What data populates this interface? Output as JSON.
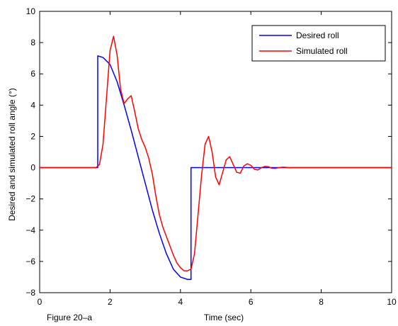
{
  "chart_data": {
    "type": "line",
    "title": "",
    "xlabel": "Time (sec)",
    "ylabel": "Desired and simulated roll angle (°)",
    "caption": "Figure 20–a",
    "xlim": [
      0,
      10
    ],
    "ylim": [
      -8,
      10
    ],
    "x_ticks": [
      "0",
      "2",
      "4",
      "6",
      "8",
      "10"
    ],
    "y_ticks": [
      "−8",
      "−6",
      "−4",
      "−2",
      "0",
      "2",
      "4",
      "6",
      "8",
      "10"
    ],
    "grid": false,
    "legend_position": "top-right",
    "series": [
      {
        "name": "Desired roll",
        "color": "#0000ff",
        "x": [
          0,
          1.65,
          1.65,
          1.8,
          2.0,
          2.2,
          2.4,
          2.6,
          2.8,
          3.0,
          3.2,
          3.4,
          3.6,
          3.8,
          4.0,
          4.2,
          4.3,
          4.3,
          10
        ],
        "y": [
          0,
          0,
          7.15,
          7.05,
          6.6,
          5.5,
          4.0,
          2.4,
          0.7,
          -1.0,
          -2.7,
          -4.2,
          -5.5,
          -6.5,
          -7.0,
          -7.15,
          -7.15,
          0,
          0
        ]
      },
      {
        "name": "Simulated roll",
        "color": "#ff0000",
        "x": [
          0,
          1.6,
          1.7,
          1.8,
          1.9,
          2.0,
          2.1,
          2.2,
          2.3,
          2.4,
          2.5,
          2.6,
          2.7,
          2.8,
          2.9,
          3.0,
          3.1,
          3.2,
          3.3,
          3.4,
          3.5,
          3.6,
          3.7,
          3.8,
          3.9,
          4.0,
          4.1,
          4.2,
          4.3,
          4.4,
          4.5,
          4.6,
          4.7,
          4.8,
          4.9,
          5.0,
          5.1,
          5.2,
          5.3,
          5.4,
          5.5,
          5.6,
          5.7,
          5.8,
          5.9,
          6.0,
          6.1,
          6.2,
          6.3,
          6.4,
          6.5,
          6.6,
          6.7,
          6.8,
          6.9,
          7.0,
          7.1,
          7.2,
          7.5,
          10
        ],
        "y": [
          0,
          0,
          0.2,
          1.5,
          4.5,
          7.5,
          8.4,
          7.2,
          5.0,
          4.1,
          4.4,
          4.6,
          3.6,
          2.5,
          1.8,
          1.3,
          0.6,
          -0.4,
          -1.8,
          -3.0,
          -3.8,
          -4.4,
          -5.0,
          -5.6,
          -6.1,
          -6.4,
          -6.6,
          -6.6,
          -6.5,
          -5.5,
          -3.0,
          -0.5,
          1.5,
          2.0,
          1.0,
          -0.6,
          -1.1,
          -0.3,
          0.5,
          0.7,
          0.2,
          -0.3,
          -0.35,
          0.1,
          0.25,
          0.15,
          -0.1,
          -0.15,
          0.0,
          0.08,
          0.06,
          -0.04,
          -0.05,
          0.0,
          0.03,
          0.02,
          -0.01,
          0.0,
          0.0,
          0.0
        ]
      }
    ]
  }
}
